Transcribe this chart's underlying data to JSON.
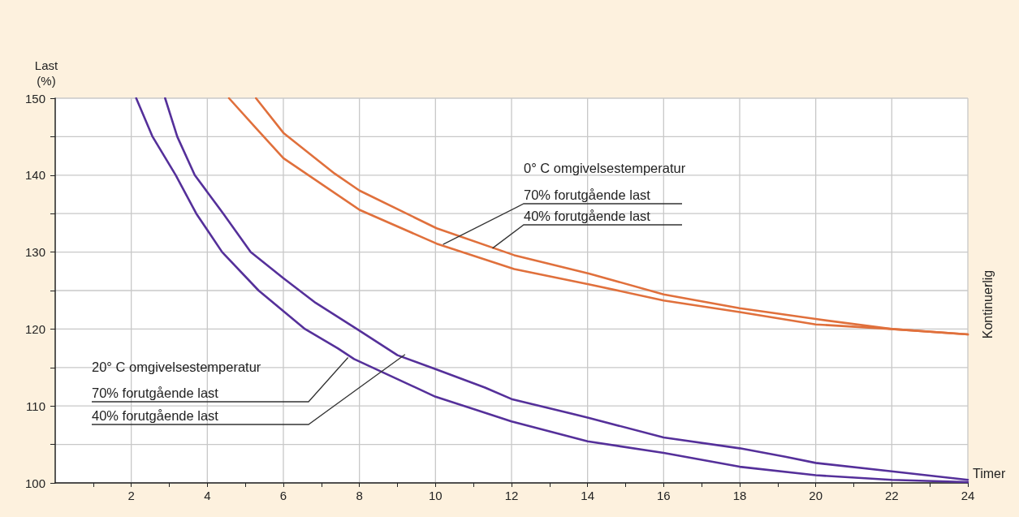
{
  "chart_data": {
    "type": "line",
    "xlabel": "Timer",
    "ylabel": "Last (%)",
    "xlim": [
      0,
      24
    ],
    "ylim": [
      100,
      150
    ],
    "xticks": [
      {
        "value": 1,
        "label": null
      },
      2,
      {
        "value": 3,
        "label": null
      },
      4,
      {
        "value": 5,
        "label": null
      },
      6,
      {
        "value": 7,
        "label": null
      },
      8,
      {
        "value": 9,
        "label": null
      },
      10,
      {
        "value": 11,
        "label": null
      },
      12,
      {
        "value": 13,
        "label": null
      },
      14,
      {
        "value": 15,
        "label": null
      },
      16,
      {
        "value": 17,
        "label": null
      },
      18,
      {
        "value": 19,
        "label": null
      },
      20,
      {
        "value": 21,
        "label": null
      },
      22,
      {
        "value": 23,
        "label": null
      },
      24
    ],
    "yticks": [
      100,
      {
        "value": 105,
        "label": null
      },
      110,
      {
        "value": 115,
        "label": null
      },
      120,
      {
        "value": 125,
        "label": null
      },
      130,
      {
        "value": 135,
        "label": null
      },
      140,
      {
        "value": 145,
        "label": null
      },
      150
    ],
    "grid": true,
    "marker": "none",
    "line_style": "solid",
    "series": [
      {
        "color": "#e0703c",
        "x": [
          5.28,
          6,
          7.35,
          8,
          10.03,
          12.07,
          14.05,
          16,
          16.88,
          18,
          20,
          22,
          24
        ],
        "values": [
          150,
          145.5,
          140.2,
          138,
          133.1,
          129.6,
          127.2,
          124.5,
          123.7,
          122.7,
          121.3,
          120,
          119.3
        ]
      },
      {
        "color": "#e0703c",
        "x": [
          4.57,
          5.28,
          6,
          8,
          10.03,
          12.07,
          14.05,
          16,
          18,
          20,
          22,
          24
        ],
        "values": [
          150,
          146.1,
          142.2,
          135.5,
          131.1,
          127.8,
          125.8,
          123.7,
          122.2,
          120.6,
          120,
          119.3
        ]
      },
      {
        "color": "#55309a",
        "x": [
          2.89,
          3.21,
          3.67,
          4.42,
          5.14,
          6,
          6.85,
          8,
          9,
          10,
          11.3,
          12,
          14,
          16,
          18,
          19.2,
          20,
          22,
          24
        ],
        "values": [
          150,
          145,
          140,
          135,
          130,
          126.6,
          123.4,
          119.8,
          116.6,
          114.8,
          112.4,
          110.9,
          108.5,
          105.9,
          104.5,
          103.4,
          102.6,
          101.5,
          100.4
        ]
      },
      {
        "color": "#55309a",
        "x": [
          2.13,
          2.56,
          3.17,
          3.71,
          4.39,
          5.35,
          6.57,
          7.43,
          7.86,
          10,
          12,
          14,
          16,
          18,
          20,
          22,
          24
        ],
        "values": [
          150,
          145,
          140,
          135,
          130,
          125,
          120,
          117.5,
          116.1,
          111.2,
          108,
          105.4,
          103.9,
          102.1,
          101,
          100.4,
          100.1
        ]
      }
    ],
    "annotations": [
      "0° C omgivelsestemperatur",
      {
        "text": "70% forutgående last",
        "x": 10.2,
        "y": 131
      },
      {
        "text": "40% forutgående last",
        "x": 11.5,
        "y": 130.5
      },
      "20° C omgivelsestemperatur",
      {
        "text": "70% forutgående last",
        "x": 7.7,
        "y": 116.3
      },
      {
        "text": "40% forutgående last",
        "x": 9.2,
        "y": 116.7
      },
      "Kontinuerlig"
    ]
  }
}
